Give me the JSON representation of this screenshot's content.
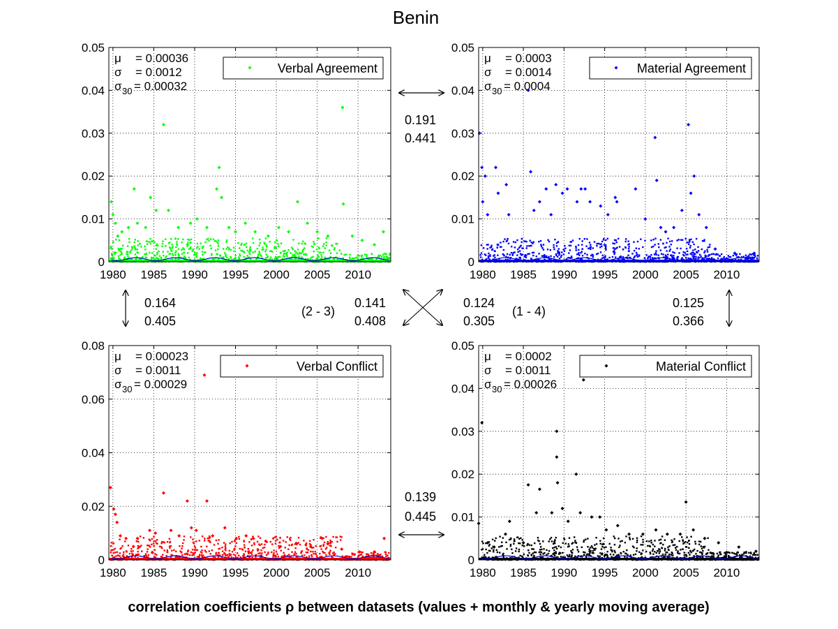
{
  "page": {
    "title": "Benin",
    "caption": "correlation coefficients ρ between datasets (values + monthly & yearly moving average)"
  },
  "chart_data": [
    {
      "type": "scatter",
      "panel": "top-left",
      "legend": "Verbal Agreement",
      "color": "#00ff00",
      "stats": {
        "mu": "0.00036",
        "sigma": "0.0012",
        "sigma30": "0.00032"
      },
      "xlim": [
        1979.5,
        2014.0
      ],
      "ylim": [
        0,
        0.05
      ],
      "xticks": [
        "1980",
        "1985",
        "1990",
        "1995",
        "2000",
        "2005",
        "2010"
      ],
      "yticks": [
        "0",
        "0.01",
        "0.02",
        "0.03",
        "0.04",
        "0.05"
      ],
      "grid": true,
      "legend_position": "top-right",
      "points": [
        [
          1979.8,
          0.014
        ],
        [
          1980.0,
          0.011
        ],
        [
          1980.3,
          0.009
        ],
        [
          1980.6,
          0.006
        ],
        [
          1981.1,
          0.007
        ],
        [
          1981.9,
          0.008
        ],
        [
          1982.6,
          0.017
        ],
        [
          1983.0,
          0.009
        ],
        [
          1984.0,
          0.008
        ],
        [
          1984.6,
          0.015
        ],
        [
          1985.3,
          0.012
        ],
        [
          1986.2,
          0.032
        ],
        [
          1986.8,
          0.012
        ],
        [
          1988.0,
          0.008
        ],
        [
          1989.5,
          0.009
        ],
        [
          1990.3,
          0.01
        ],
        [
          1991.5,
          0.008
        ],
        [
          1992.7,
          0.017
        ],
        [
          1993.0,
          0.022
        ],
        [
          1993.3,
          0.015
        ],
        [
          1994.2,
          0.008
        ],
        [
          1995.0,
          0.007
        ],
        [
          1996.2,
          0.009
        ],
        [
          1997.4,
          0.007
        ],
        [
          1999.0,
          0.006
        ],
        [
          2000.3,
          0.008
        ],
        [
          2001.5,
          0.007
        ],
        [
          2002.6,
          0.014
        ],
        [
          2003.8,
          0.009
        ],
        [
          2005.0,
          0.007
        ],
        [
          2006.3,
          0.006
        ],
        [
          2008.1,
          0.036
        ],
        [
          2008.2,
          0.0135
        ],
        [
          2009.3,
          0.006
        ],
        [
          2010.5,
          0.005
        ],
        [
          2012.0,
          0.004
        ],
        [
          2013.1,
          0.007
        ]
      ]
    },
    {
      "type": "scatter",
      "panel": "top-right",
      "legend": "Material Agreement",
      "color": "#0000ff",
      "stats": {
        "mu": "0.0003",
        "sigma": "0.0014",
        "sigma30": "0.0004"
      },
      "xlim": [
        1979.5,
        2014.0
      ],
      "ylim": [
        0,
        0.05
      ],
      "xticks": [
        "1980",
        "1985",
        "1990",
        "1995",
        "2000",
        "2005",
        "2010"
      ],
      "yticks": [
        "0",
        "0.01",
        "0.02",
        "0.03",
        "0.04",
        "0.05"
      ],
      "grid": true,
      "legend_position": "top-right",
      "points": [
        [
          1979.6,
          0.03
        ],
        [
          1979.9,
          0.022
        ],
        [
          1980.0,
          0.014
        ],
        [
          1980.3,
          0.02
        ],
        [
          1980.6,
          0.011
        ],
        [
          1981.6,
          0.022
        ],
        [
          1981.9,
          0.016
        ],
        [
          1982.9,
          0.018
        ],
        [
          1983.2,
          0.011
        ],
        [
          1985.6,
          0.04
        ],
        [
          1985.9,
          0.021
        ],
        [
          1986.3,
          0.012
        ],
        [
          1987.0,
          0.014
        ],
        [
          1987.8,
          0.017
        ],
        [
          1988.4,
          0.011
        ],
        [
          1989.0,
          0.018
        ],
        [
          1989.8,
          0.016
        ],
        [
          1990.4,
          0.017
        ],
        [
          1991.6,
          0.014
        ],
        [
          1992.1,
          0.017
        ],
        [
          1992.6,
          0.017
        ],
        [
          1993.2,
          0.014
        ],
        [
          1994.5,
          0.013
        ],
        [
          1995.4,
          0.011
        ],
        [
          1996.3,
          0.015
        ],
        [
          1996.5,
          0.014
        ],
        [
          1998.8,
          0.017
        ],
        [
          2000.0,
          0.01
        ],
        [
          2001.2,
          0.029
        ],
        [
          2001.4,
          0.019
        ],
        [
          2001.9,
          0.008
        ],
        [
          2002.5,
          0.007
        ],
        [
          2003.5,
          0.008
        ],
        [
          2004.5,
          0.012
        ],
        [
          2005.3,
          0.032
        ],
        [
          2005.6,
          0.016
        ],
        [
          2006.0,
          0.02
        ],
        [
          2006.6,
          0.011
        ],
        [
          2007.5,
          0.008
        ],
        [
          2008.6,
          0.003
        ],
        [
          2011.0,
          0.002
        ],
        [
          2013.4,
          0.002
        ]
      ]
    },
    {
      "type": "scatter",
      "panel": "bottom-left",
      "legend": "Verbal Conflict",
      "color": "#ff0000",
      "stats": {
        "mu": "0.00023",
        "sigma": "0.0011",
        "sigma30": "0.00029"
      },
      "xlim": [
        1979.5,
        2014.0
      ],
      "ylim": [
        0,
        0.08
      ],
      "xticks": [
        "1980",
        "1985",
        "1990",
        "1995",
        "2000",
        "2005",
        "2010"
      ],
      "yticks": [
        "0",
        "0.02",
        "0.04",
        "0.06",
        "0.08"
      ],
      "grid": true,
      "legend_position": "top-right",
      "points": [
        [
          1979.7,
          0.027
        ],
        [
          1980.1,
          0.019
        ],
        [
          1980.3,
          0.017
        ],
        [
          1980.5,
          0.014
        ],
        [
          1980.9,
          0.009
        ],
        [
          1981.6,
          0.008
        ],
        [
          1982.5,
          0.005
        ],
        [
          1983.0,
          0.008
        ],
        [
          1984.5,
          0.011
        ],
        [
          1985.2,
          0.01
        ],
        [
          1986.2,
          0.025
        ],
        [
          1987.1,
          0.011
        ],
        [
          1988.1,
          0.009
        ],
        [
          1989.1,
          0.022
        ],
        [
          1989.6,
          0.012
        ],
        [
          1990.2,
          0.011
        ],
        [
          1991.2,
          0.069
        ],
        [
          1991.5,
          0.022
        ],
        [
          1992.2,
          0.009
        ],
        [
          1993.7,
          0.012
        ],
        [
          1995.1,
          0.008
        ],
        [
          1996.3,
          0.009
        ],
        [
          1997.2,
          0.008
        ],
        [
          1998.7,
          0.007
        ],
        [
          2000.5,
          0.005
        ],
        [
          2002.5,
          0.006
        ],
        [
          2004.2,
          0.005
        ],
        [
          2005.6,
          0.008
        ],
        [
          2006.3,
          0.006
        ],
        [
          2008.0,
          0.004
        ],
        [
          2010.2,
          0.003
        ],
        [
          2012.0,
          0.003
        ],
        [
          2013.2,
          0.008
        ]
      ]
    },
    {
      "type": "scatter",
      "panel": "bottom-right",
      "legend": "Material Conflict",
      "color": "#000000",
      "stats": {
        "mu": "0.0002",
        "sigma": "0.0011",
        "sigma30": "0.00026"
      },
      "xlim": [
        1979.5,
        2014.0
      ],
      "ylim": [
        0,
        0.05
      ],
      "xticks": [
        "1980",
        "1985",
        "1990",
        "1995",
        "2000",
        "2005",
        "2010"
      ],
      "yticks": [
        "0",
        "0.01",
        "0.02",
        "0.03",
        "0.04",
        "0.05"
      ],
      "grid": true,
      "legend_position": "top-right",
      "points": [
        [
          1979.5,
          0.0085
        ],
        [
          1979.9,
          0.032
        ],
        [
          1980.6,
          0.004
        ],
        [
          1981.4,
          0.003
        ],
        [
          1982.8,
          0.006
        ],
        [
          1983.3,
          0.009
        ],
        [
          1985.0,
          0.004
        ],
        [
          1985.6,
          0.0175
        ],
        [
          1986.6,
          0.011
        ],
        [
          1987.0,
          0.0165
        ],
        [
          1988.5,
          0.011
        ],
        [
          1989.1,
          0.03
        ],
        [
          1989.1,
          0.024
        ],
        [
          1989.2,
          0.018
        ],
        [
          1989.8,
          0.012
        ],
        [
          1990.5,
          0.009
        ],
        [
          1991.5,
          0.02
        ],
        [
          1992.0,
          0.011
        ],
        [
          1992.4,
          0.042
        ],
        [
          1993.4,
          0.01
        ],
        [
          1994.4,
          0.01
        ],
        [
          1995.2,
          0.007
        ],
        [
          1996.6,
          0.008
        ],
        [
          1998.0,
          0.006
        ],
        [
          1999.7,
          0.006
        ],
        [
          2001.3,
          0.007
        ],
        [
          2002.7,
          0.006
        ],
        [
          2004.3,
          0.006
        ],
        [
          2005.0,
          0.0135
        ],
        [
          2005.9,
          0.007
        ],
        [
          2007.3,
          0.005
        ],
        [
          2009.0,
          0.004
        ],
        [
          2011.5,
          0.003
        ],
        [
          2013.6,
          0.002
        ]
      ]
    }
  ],
  "correlations": {
    "top": {
      "value1": "0.191",
      "value2": "0.441"
    },
    "bottom": {
      "value1": "0.139",
      "value2": "0.445"
    },
    "left": {
      "value1": "0.164",
      "value2": "0.405"
    },
    "right": {
      "value1": "0.125",
      "value2": "0.366"
    },
    "diag_23": {
      "label": "(2 - 3)",
      "value1": "0.141",
      "value2": "0.408"
    },
    "diag_14": {
      "label": "(1 - 4)",
      "value1": "0.124",
      "value2": "0.305"
    }
  }
}
